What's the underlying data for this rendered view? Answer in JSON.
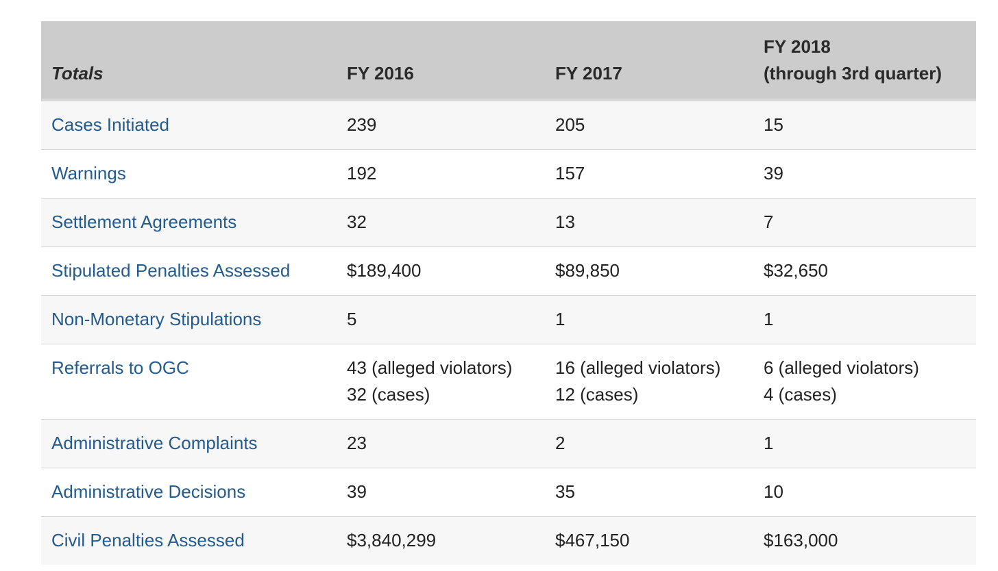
{
  "table": {
    "headers": {
      "totals": "Totals",
      "fy2016": "FY 2016",
      "fy2017": "FY 2017",
      "fy2018_line1": "FY 2018",
      "fy2018_line2": "(through 3rd quarter)"
    },
    "rows": [
      {
        "metric": "Cases Initiated",
        "fy2016": [
          "239"
        ],
        "fy2017": [
          "205"
        ],
        "fy2018": [
          "15"
        ]
      },
      {
        "metric": "Warnings",
        "fy2016": [
          "192"
        ],
        "fy2017": [
          "157"
        ],
        "fy2018": [
          "39"
        ]
      },
      {
        "metric": "Settlement Agreements",
        "fy2016": [
          "32"
        ],
        "fy2017": [
          "13"
        ],
        "fy2018": [
          "7"
        ]
      },
      {
        "metric": "Stipulated Penalties Assessed",
        "fy2016": [
          "$189,400"
        ],
        "fy2017": [
          "$89,850"
        ],
        "fy2018": [
          "$32,650"
        ]
      },
      {
        "metric": "Non-Monetary Stipulations",
        "fy2016": [
          "5"
        ],
        "fy2017": [
          "1"
        ],
        "fy2018": [
          "1"
        ]
      },
      {
        "metric": "Referrals to OGC",
        "fy2016": [
          "43 (alleged violators)",
          "32 (cases)"
        ],
        "fy2017": [
          "16 (alleged violators)",
          "12 (cases)"
        ],
        "fy2018": [
          "6 (alleged violators)",
          "4 (cases)"
        ]
      },
      {
        "metric": "Administrative Complaints",
        "fy2016": [
          "23"
        ],
        "fy2017": [
          "2"
        ],
        "fy2018": [
          "1"
        ]
      },
      {
        "metric": "Administrative Decisions",
        "fy2016": [
          "39"
        ],
        "fy2017": [
          "35"
        ],
        "fy2018": [
          "10"
        ]
      },
      {
        "metric": "Civil Penalties Assessed",
        "fy2016": [
          "$3,840,299"
        ],
        "fy2017": [
          "$467,150"
        ],
        "fy2018": [
          "$163,000"
        ]
      }
    ]
  },
  "colors": {
    "header_bg": "#cccccc",
    "link": "#245b8f",
    "stripe": "#f7f7f7",
    "text": "#222222"
  }
}
